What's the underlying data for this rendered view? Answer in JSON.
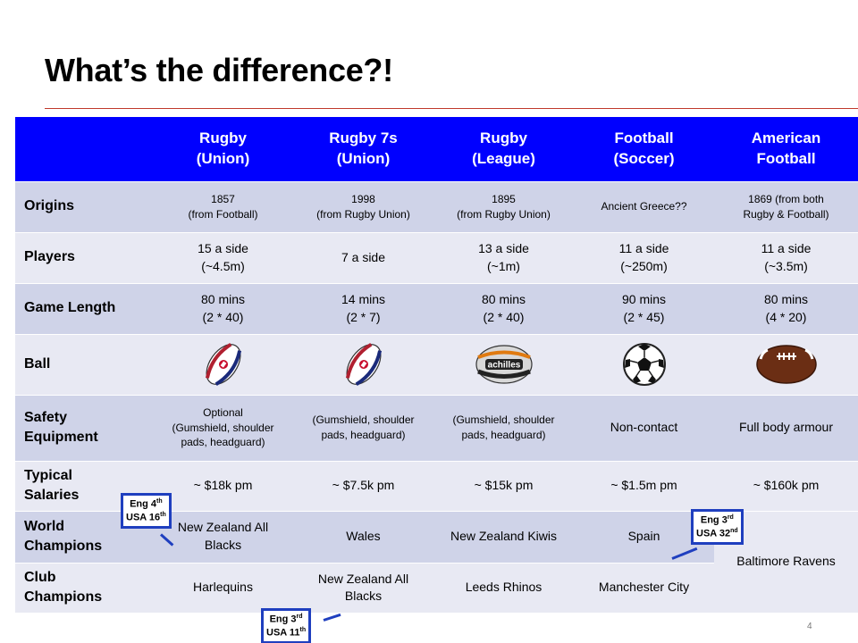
{
  "title": "What’s the difference?!",
  "page_number": "4",
  "columns": [
    "Rugby\n(Union)",
    "Rugby 7s\n(Union)",
    "Rugby\n(League)",
    "Football\n(Soccer)",
    "American\nFootball"
  ],
  "rows": {
    "origins": {
      "label": "Origins",
      "cells": [
        "1857\n(from Football)",
        "1998\n(from Rugby Union)",
        "1895\n(from Rugby Union)",
        "Ancient Greece??",
        "1869 (from both\nRugby & Football)"
      ]
    },
    "players": {
      "label": "Players",
      "cells": [
        "15 a side\n(~4.5m)",
        "7 a side",
        "13 a side\n(~1m)",
        "11 a side\n(~250m)",
        "11 a side\n(~3.5m)"
      ]
    },
    "game_length": {
      "label": "Game Length",
      "cells": [
        "80 mins\n(2 * 40)",
        "14 mins\n(2 * 7)",
        "80 mins\n(2 * 40)",
        "90 mins\n(2 * 45)",
        "80 mins\n(4 * 20)"
      ]
    },
    "ball": {
      "label": "Ball",
      "icons": [
        "rugby-ball-england-icon",
        "rugby-ball-england-icon",
        "rugby-ball-achilles-icon",
        "soccer-ball-icon",
        "american-football-icon"
      ],
      "brand_text": "achilles"
    },
    "safety": {
      "label": "Safety\nEquipment",
      "cells": [
        "Optional\n(Gumshield, shoulder\npads, headguard)",
        "(Gumshield, shoulder\npads, headguard)",
        "(Gumshield, shoulder\npads, headguard)",
        "Non-contact",
        "Full body armour"
      ]
    },
    "salaries": {
      "label": "Typical\nSalaries",
      "cells": [
        "~ $18k pm",
        "~ $7.5k pm",
        "~ $15k pm",
        "~ $1.5m pm",
        "~ $160k pm"
      ]
    },
    "world": {
      "label": "World\nChampions",
      "cells": [
        "New Zealand All\nBlacks",
        "Wales",
        "New Zealand Kiwis",
        "Spain"
      ]
    },
    "club": {
      "label": "Club\nChampions",
      "cells": [
        "Harlequins",
        "New Zealand All\nBlacks",
        "Leeds Rhinos",
        "Manchester City"
      ]
    },
    "american_champions": "Baltimore Ravens"
  },
  "callouts": {
    "rugby_union": {
      "eng": "Eng 4",
      "eng_sup": "th",
      "usa": "USA 16",
      "usa_sup": "th"
    },
    "soccer": {
      "eng": "Eng 3",
      "eng_sup": "rd",
      "usa": "USA 32",
      "usa_sup": "nd"
    },
    "rugby_league": {
      "eng": "Eng 3",
      "eng_sup": "rd",
      "usa": "USA 11",
      "usa_sup": "th"
    }
  },
  "colors": {
    "header_blue": "#0000ff",
    "row_light": "#e8e9f3",
    "row_dark": "#cfd3e8",
    "callout_border": "#1f3fbf",
    "title_rule": "#c0392b"
  }
}
